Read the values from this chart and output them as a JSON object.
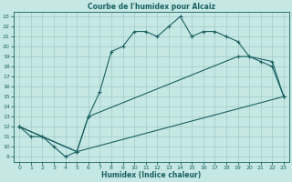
{
  "title": "Courbe de l'humidex pour Alcaiz",
  "xlabel": "Humidex (Indice chaleur)",
  "bg_color": "#c5e8e5",
  "grid_color": "#a8ceca",
  "line_color": "#1a6060",
  "xlim": [
    -0.5,
    23.5
  ],
  "ylim": [
    8.5,
    23.5
  ],
  "xticks": [
    0,
    1,
    2,
    3,
    4,
    5,
    6,
    7,
    8,
    9,
    10,
    11,
    12,
    13,
    14,
    15,
    16,
    17,
    18,
    19,
    20,
    21,
    22,
    23
  ],
  "yticks": [
    9,
    10,
    11,
    12,
    13,
    14,
    15,
    16,
    17,
    18,
    19,
    20,
    21,
    22,
    23
  ],
  "line1_x": [
    0,
    1,
    2,
    3,
    4,
    5,
    6,
    7,
    8,
    9,
    10,
    11,
    12,
    13,
    14,
    15,
    16,
    17,
    18,
    19,
    20,
    21,
    22,
    23
  ],
  "line1_y": [
    12,
    11,
    11,
    10,
    9,
    9.5,
    13,
    15.5,
    19.5,
    20,
    21.5,
    21.5,
    21,
    22,
    23,
    21,
    21.5,
    21.5,
    21,
    20.5,
    19,
    18.5,
    18,
    15
  ],
  "line2_x": [
    0,
    2,
    5,
    6,
    19,
    20,
    22,
    23
  ],
  "line2_y": [
    12,
    11,
    9.5,
    13,
    19,
    19,
    18.5,
    15
  ],
  "line3_x": [
    0,
    5,
    23
  ],
  "line3_y": [
    12,
    9.5,
    15
  ]
}
